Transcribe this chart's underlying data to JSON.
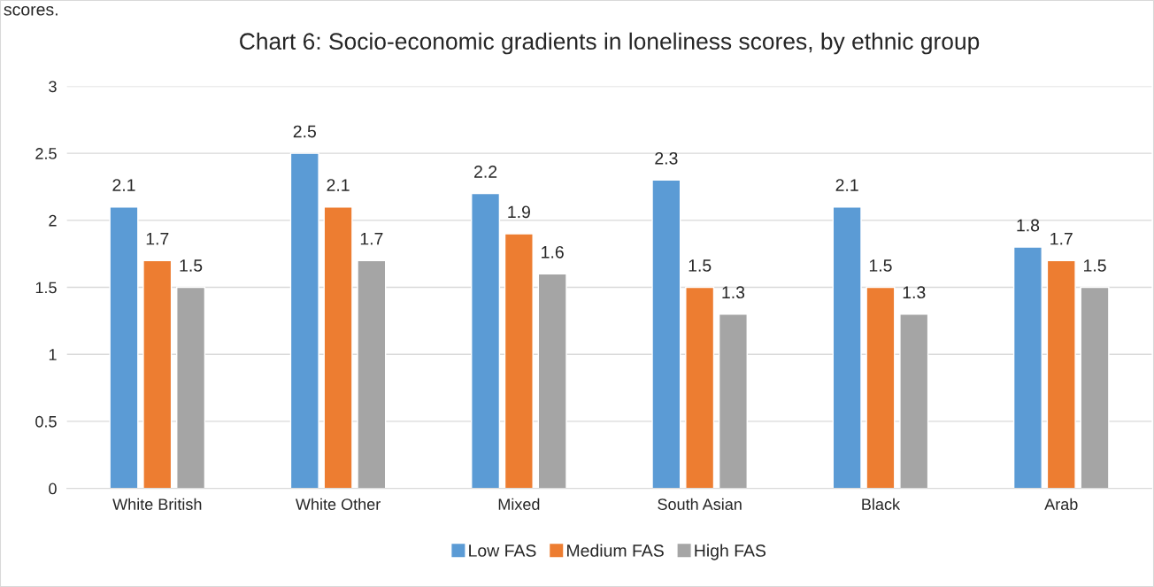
{
  "chart_data": {
    "type": "bar",
    "title": "Chart 6: Socio-economic gradients in loneliness scores, by ethnic group",
    "annotations": [
      "scores."
    ],
    "categories": [
      "White British",
      "White Other",
      "Mixed",
      "South Asian",
      "Black",
      "Arab"
    ],
    "series": [
      {
        "name": "Low FAS",
        "color": "#5b9bd5",
        "values": [
          2.1,
          2.5,
          2.2,
          2.3,
          2.1,
          1.8
        ]
      },
      {
        "name": "Medium FAS",
        "color": "#ed7d31",
        "values": [
          1.7,
          2.1,
          1.9,
          1.5,
          1.5,
          1.7
        ]
      },
      {
        "name": "High FAS",
        "color": "#a5a5a5",
        "values": [
          1.5,
          1.7,
          1.6,
          1.3,
          1.3,
          1.5
        ]
      }
    ],
    "ylim": [
      0,
      3
    ],
    "yticks": [
      0,
      {
        "value": 0.5,
        "label": "0.5"
      },
      1,
      {
        "value": 1.5,
        "label": "1.5"
      },
      2,
      {
        "value": 2.5,
        "label": "2.5"
      },
      3
    ],
    "grid": "y",
    "legend": "bottom",
    "data_labels": true
  }
}
